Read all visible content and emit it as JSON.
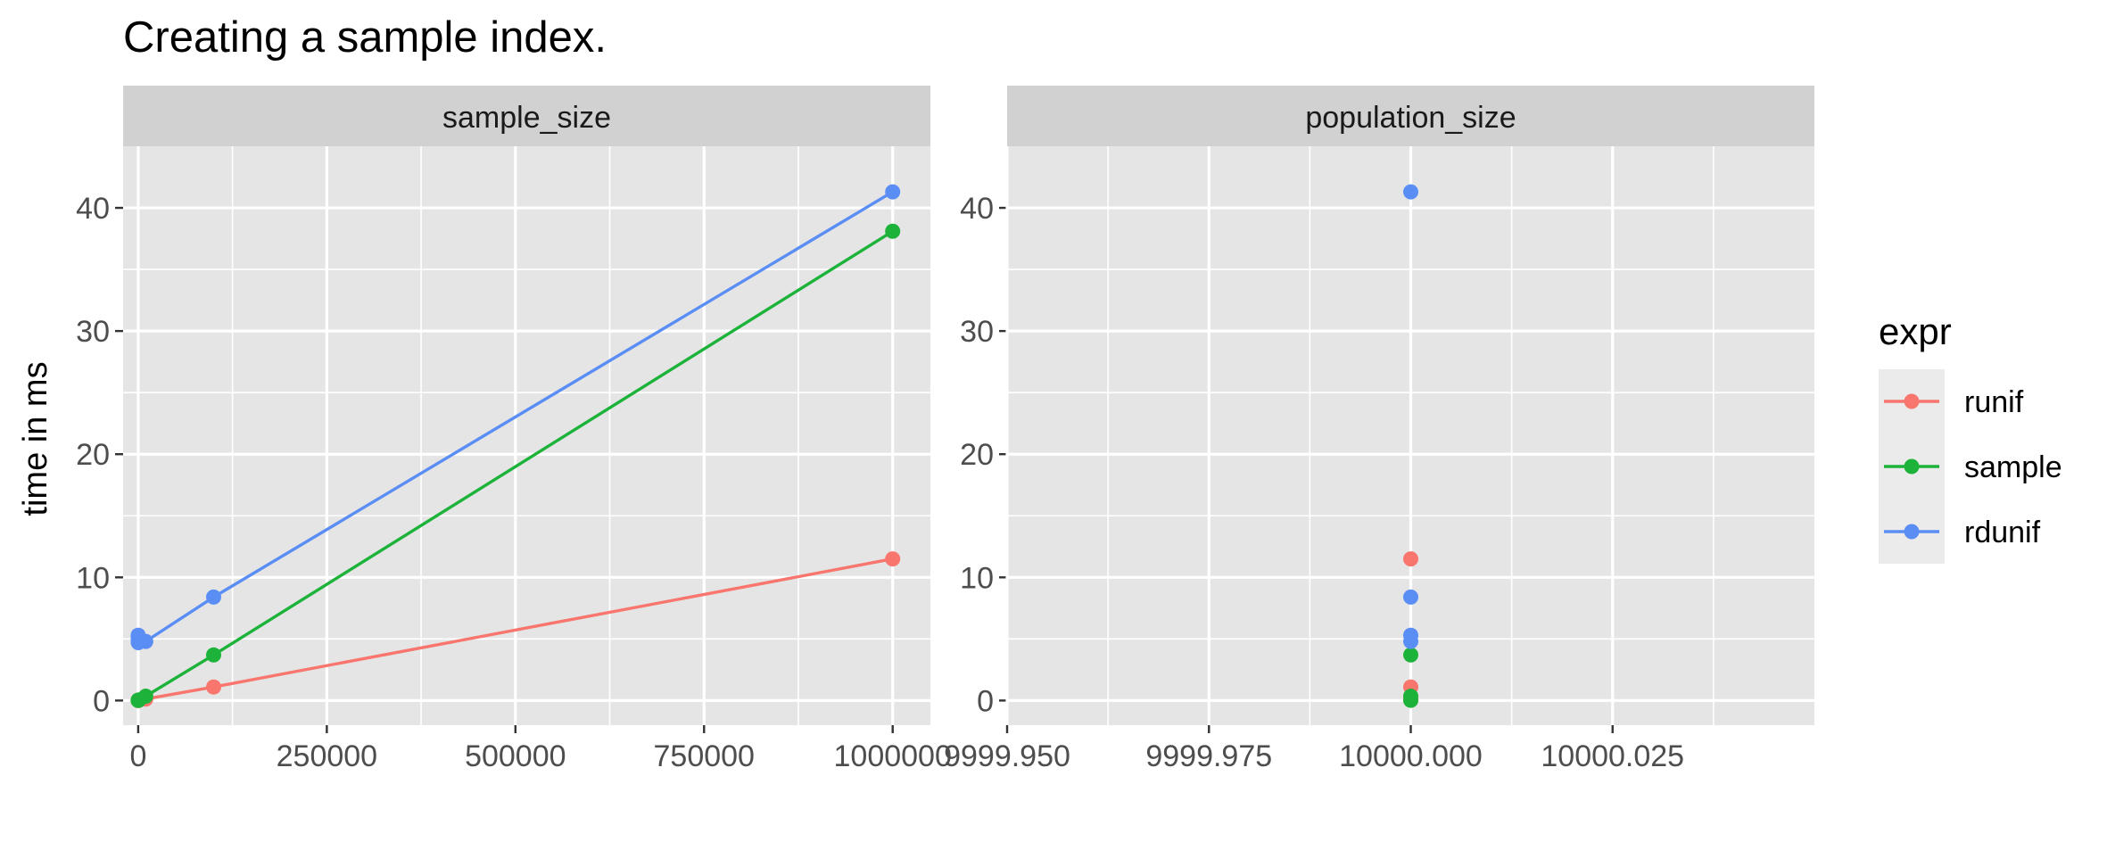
{
  "chart_data": {
    "type": "line",
    "title": "Creating a sample index.",
    "ylabel": "time in ms",
    "ylim": [
      -2,
      45
    ],
    "y_ticks": [
      0,
      10,
      20,
      30,
      40
    ],
    "grid": true,
    "legend": {
      "title": "expr",
      "placement": "right",
      "entries": [
        "runif",
        "sample",
        "rdunif"
      ]
    },
    "colors": {
      "runif": "#F8766D",
      "sample": "#1DB33A",
      "rdunif": "#5B8EF5",
      "panel_bg": "#E5E5E5",
      "strip_bg": "#D1D1D1",
      "grid": "#FFFFFF"
    },
    "panels": [
      {
        "strip": "sample_size",
        "xlim": [
          -20000,
          1050000
        ],
        "x_ticks": [
          0,
          250000,
          500000,
          750000,
          1000000
        ],
        "x_tick_labels": [
          "0",
          "250000",
          "500000",
          "750000",
          "1000000"
        ],
        "lines": true,
        "series": [
          {
            "name": "runif",
            "x": [
              1,
              10,
              100,
              1000,
              10000,
              100000,
              1000000
            ],
            "y": [
              0.01,
              0.01,
              0.02,
              0.03,
              0.12,
              1.1,
              11.5
            ]
          },
          {
            "name": "sample",
            "x": [
              1,
              10,
              100,
              1000,
              10000,
              100000,
              1000000
            ],
            "y": [
              0.01,
              0.02,
              0.03,
              0.05,
              0.35,
              3.7,
              38.1
            ]
          },
          {
            "name": "rdunif",
            "x": [
              1,
              10,
              100,
              1000,
              10000,
              100000,
              1000000
            ],
            "y": [
              5.3,
              5.0,
              4.7,
              4.8,
              4.8,
              8.4,
              41.3
            ]
          }
        ]
      },
      {
        "strip": "population_size",
        "xlim": [
          9999.95,
          10000.05
        ],
        "x_ticks": [
          9999.95,
          9999.975,
          10000.0,
          10000.025
        ],
        "x_tick_labels": [
          "9999.950",
          "9999.975",
          "10000.000",
          "10000.025"
        ],
        "lines": false,
        "series": [
          {
            "name": "runif",
            "x": [
              10000,
              10000,
              10000,
              10000
            ],
            "y": [
              0.05,
              0.1,
              1.1,
              11.5
            ]
          },
          {
            "name": "sample",
            "x": [
              10000,
              10000,
              10000
            ],
            "y": [
              0.02,
              0.35,
              3.7
            ]
          },
          {
            "name": "rdunif",
            "x": [
              10000,
              10000,
              10000,
              10000
            ],
            "y": [
              4.8,
              5.3,
              8.4,
              41.3
            ]
          }
        ]
      }
    ]
  }
}
